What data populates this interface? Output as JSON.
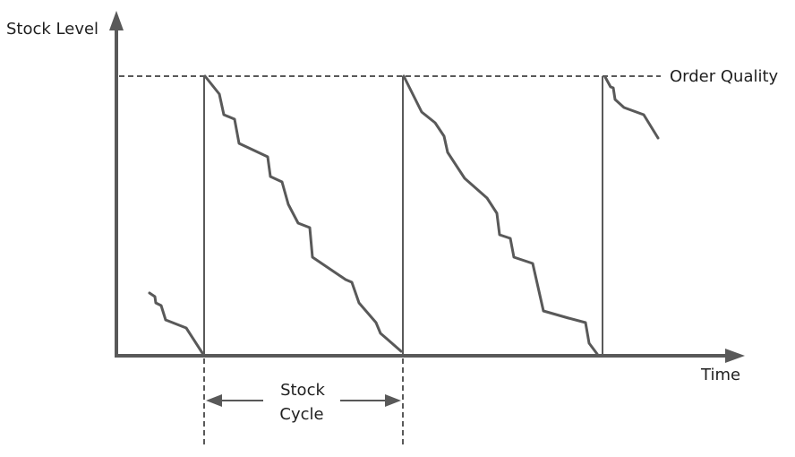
{
  "labels": {
    "y_axis": "Stock Level",
    "x_axis": "Time",
    "order_level": "Order Quality",
    "cycle_line1": "Stock",
    "cycle_line2": "Cycle"
  },
  "colors": {
    "line": "#595959",
    "text": "#1f1f1f"
  }
}
